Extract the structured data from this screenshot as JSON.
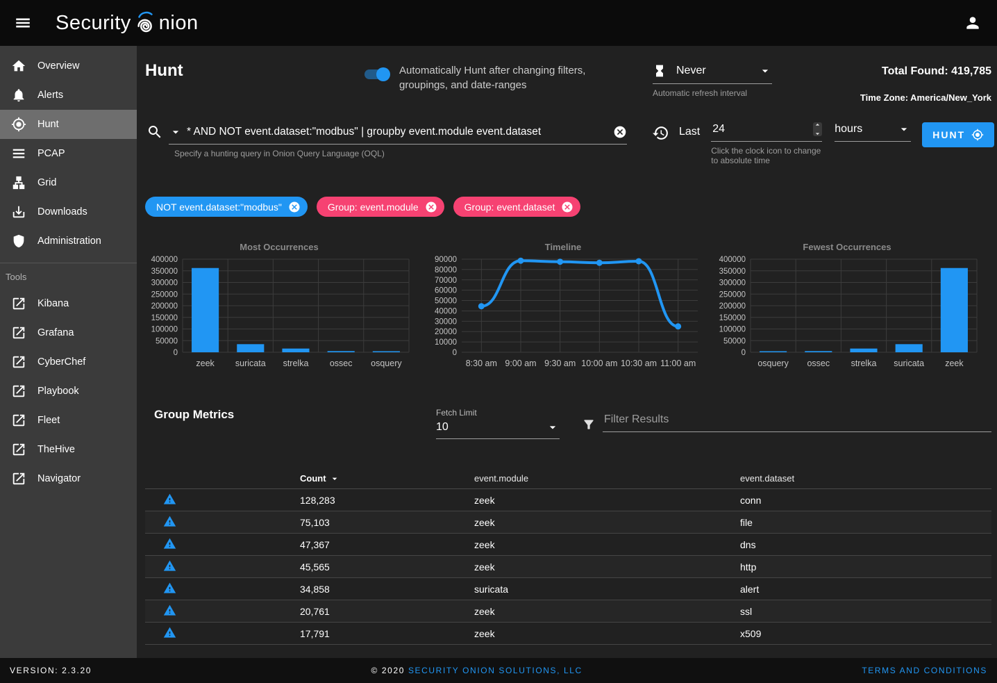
{
  "header": {
    "app_title_part1": "Security",
    "app_title_part2": "nion",
    "total_found_label": "Total Found:",
    "total_found_value": "419,785",
    "timezone_label": "Time Zone:",
    "timezone_value": "America/New_York"
  },
  "sidebar": {
    "items": [
      {
        "label": "Overview",
        "icon": "home-icon",
        "selected": false
      },
      {
        "label": "Alerts",
        "icon": "bell-icon",
        "selected": false
      },
      {
        "label": "Hunt",
        "icon": "crosshair-icon",
        "selected": true
      },
      {
        "label": "PCAP",
        "icon": "pcap-icon",
        "selected": false
      },
      {
        "label": "Grid",
        "icon": "grid-icon",
        "selected": false
      },
      {
        "label": "Downloads",
        "icon": "download-icon",
        "selected": false
      },
      {
        "label": "Administration",
        "icon": "shield-icon",
        "selected": false
      }
    ],
    "tools_header": "Tools",
    "tools": [
      {
        "label": "Kibana",
        "icon": "external-link-icon"
      },
      {
        "label": "Grafana",
        "icon": "external-link-icon"
      },
      {
        "label": "CyberChef",
        "icon": "external-link-icon"
      },
      {
        "label": "Playbook",
        "icon": "external-link-icon"
      },
      {
        "label": "Fleet",
        "icon": "external-link-icon"
      },
      {
        "label": "TheHive",
        "icon": "external-link-icon"
      },
      {
        "label": "Navigator",
        "icon": "external-link-icon"
      }
    ]
  },
  "hunt": {
    "page_title": "Hunt",
    "auto_hunt_label": "Automatically Hunt after changing filters, groupings, and date-ranges",
    "refresh": {
      "value": "Never",
      "hint": "Automatic refresh interval"
    },
    "query": {
      "value": "* AND NOT event.dataset:\"modbus\" | groupby event.module event.dataset",
      "hint": "Specify a hunting query in Onion Query Language (OQL)"
    },
    "time_range": {
      "prefix": "Last",
      "value": "24",
      "unit": "hours",
      "hint": "Click the clock icon to change to absolute time"
    },
    "hunt_button_label": "HUNT",
    "filters": [
      {
        "label": "NOT event.dataset:\"modbus\"",
        "type": "include"
      },
      {
        "label": "Group: event.module",
        "type": "group"
      },
      {
        "label": "Group: event.dataset",
        "type": "group"
      }
    ]
  },
  "chart_data": [
    {
      "type": "bar",
      "title": "Most Occurrences",
      "categories": [
        "zeek",
        "suricata",
        "strelka",
        "ossec",
        "osquery"
      ],
      "values": [
        362000,
        34858,
        16000,
        5000,
        800
      ],
      "ylim": [
        0,
        400000
      ],
      "ytick": 50000,
      "grid": true,
      "bar_color": "#2196f3"
    },
    {
      "type": "line",
      "title": "Timeline",
      "x": [
        "8:30 am",
        "9:00 am",
        "9:30 am",
        "10:00 am",
        "10:30 am",
        "11:00 am"
      ],
      "values": [
        44500,
        88500,
        87500,
        86500,
        88000,
        25000
      ],
      "ylim": [
        0,
        90000
      ],
      "ytick": 10000,
      "grid": true,
      "line_color": "#2196f3"
    },
    {
      "type": "bar",
      "title": "Fewest Occurrences",
      "categories": [
        "osquery",
        "ossec",
        "strelka",
        "suricata",
        "zeek"
      ],
      "values": [
        800,
        5000,
        16000,
        34858,
        362000
      ],
      "ylim": [
        0,
        400000
      ],
      "ytick": 50000,
      "grid": true,
      "bar_color": "#2196f3"
    }
  ],
  "group_metrics": {
    "title": "Group Metrics",
    "fetch_limit_label": "Fetch Limit",
    "fetch_limit_value": "10",
    "filter_placeholder": "Filter Results",
    "columns": [
      "Count",
      "event.module",
      "event.dataset"
    ],
    "rows": [
      {
        "icon": "alert-triangle-icon",
        "count": "128,283",
        "module": "zeek",
        "dataset": "conn"
      },
      {
        "icon": "alert-triangle-icon",
        "count": "75,103",
        "module": "zeek",
        "dataset": "file"
      },
      {
        "icon": "alert-triangle-icon",
        "count": "47,367",
        "module": "zeek",
        "dataset": "dns"
      },
      {
        "icon": "alert-triangle-icon",
        "count": "45,565",
        "module": "zeek",
        "dataset": "http"
      },
      {
        "icon": "alert-triangle-icon",
        "count": "34,858",
        "module": "suricata",
        "dataset": "alert"
      },
      {
        "icon": "alert-triangle-icon",
        "count": "20,761",
        "module": "zeek",
        "dataset": "ssl"
      },
      {
        "icon": "alert-triangle-icon",
        "count": "17,791",
        "module": "zeek",
        "dataset": "x509"
      }
    ]
  },
  "footer": {
    "version": "VERSION: 2.3.20",
    "copyright_prefix": "© 2020",
    "copyright_company": "SECURITY ONION SOLUTIONS, LLC",
    "terms": "TERMS AND CONDITIONS"
  },
  "colors": {
    "accent": "#2196f3",
    "chip_filter": "#2196f3",
    "chip_group": "#f64272",
    "sidebar_selected": "#6e6e6e",
    "topbar": "#0b0b0b",
    "background": "#212121"
  }
}
